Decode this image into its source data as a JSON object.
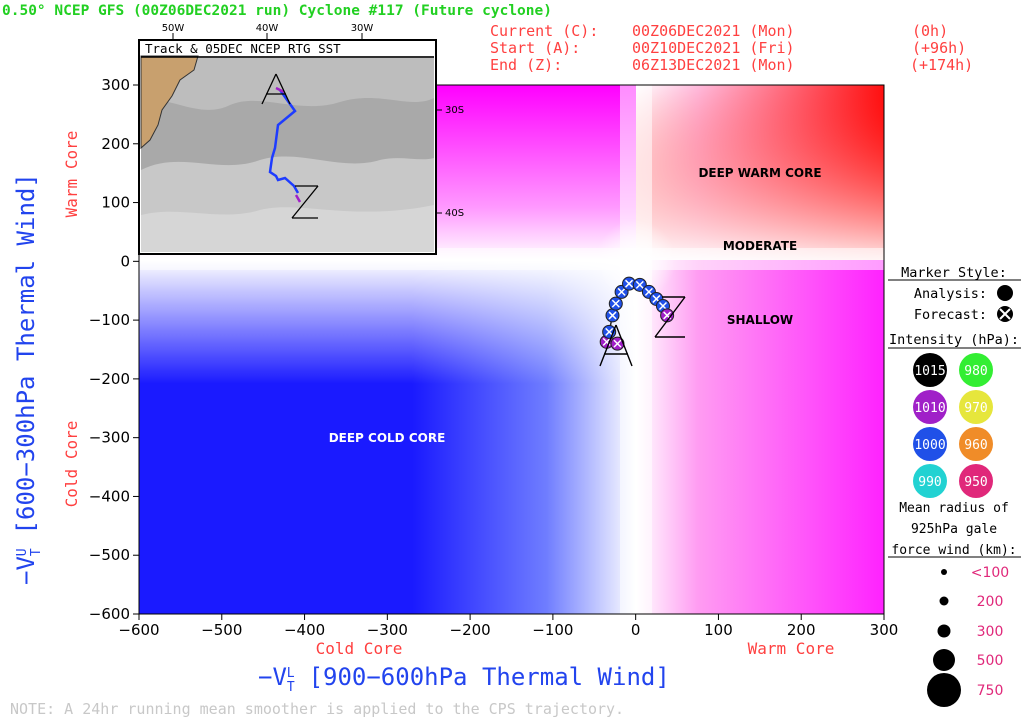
{
  "header": {
    "title": "0.50° NCEP GFS (00Z06DEC2021 run) Cyclone #117 (Future cyclone)",
    "current_label": "Current (C):",
    "current_date": "00Z06DEC2021 (Mon)",
    "current_offset": "(0h)",
    "start_label": "Start (A):",
    "start_date": "00Z10DEC2021 (Fri)",
    "start_offset": "(+96h)",
    "end_label": "End (Z):",
    "end_date": "06Z13DEC2021 (Mon)",
    "end_offset": "(+174h)"
  },
  "inset": {
    "title": "Track & 05DEC NCEP RTG SST",
    "lon_labels": [
      "50W",
      "40W",
      "30W"
    ],
    "lat_labels": [
      "30S",
      "40S"
    ],
    "start_marker": "A",
    "end_marker": "Z"
  },
  "regions": {
    "deep_warm_core": "DEEP WARM CORE",
    "moderate": "MODERATE",
    "shallow": "SHALLOW",
    "deep_cold_core": "DEEP COLD CORE"
  },
  "axis_text": {
    "y_warm": "Warm Core",
    "y_cold": "Cold Core",
    "x_cold": "Cold Core",
    "x_warm": "Warm Core",
    "x_title": "−V",
    "x_title_sub": "T",
    "x_title_sup": "L",
    "x_title_rest": "[900−600hPa Thermal Wind]",
    "y_title": "−V",
    "y_title_sub": "T",
    "y_title_sup": "U",
    "y_title_rest": "[600−300hPa Thermal Wind]"
  },
  "legend": {
    "marker_title": "Marker Style:",
    "analysis_label": "Analysis:",
    "forecast_label": "Forecast:",
    "intensity_title": "Intensity (hPa):",
    "intensity": [
      {
        "label": "1015",
        "color": "#000000"
      },
      {
        "label": "980",
        "color": "#33ee33"
      },
      {
        "label": "1010",
        "color": "#a020c8"
      },
      {
        "label": "970",
        "color": "#e6e63c"
      },
      {
        "label": "1000",
        "color": "#2050e8"
      },
      {
        "label": "960",
        "color": "#f08c28"
      },
      {
        "label": "990",
        "color": "#22d2d2"
      },
      {
        "label": "950",
        "color": "#e0287a"
      }
    ],
    "radius_title_1": "Mean radius of",
    "radius_title_2": "925hPa gale",
    "radius_title_3": "force wind (km):",
    "radius": [
      "<100",
      "200",
      "300",
      "500",
      "750"
    ]
  },
  "note": "NOTE: A 24hr running mean smoother is applied to the CPS trajectory.",
  "chart_data": {
    "type": "scatter",
    "title": "",
    "xlabel": "−VTL [900−600hPa Thermal Wind]",
    "ylabel": "−VTU [600−300hPa Thermal Wind]",
    "xlim": [
      -600,
      300
    ],
    "ylim": [
      -600,
      300
    ],
    "xticks": [
      -600,
      -500,
      -400,
      -300,
      -200,
      -100,
      0,
      100,
      200,
      300
    ],
    "yticks": [
      -600,
      -500,
      -400,
      -300,
      -200,
      -100,
      0,
      100,
      200,
      300
    ],
    "grid": false,
    "start_marker": "A",
    "end_marker": "Z",
    "series": [
      {
        "x": [
          -35,
          -32,
          -28,
          -24,
          -17,
          -8,
          5,
          16,
          25,
          33,
          38
        ],
        "y": [
          -137,
          -120,
          -92,
          -72,
          -52,
          -38,
          -40,
          -52,
          -64,
          -76,
          -92
        ],
        "intensity": [
          1010,
          1000,
          1000,
          1000,
          1000,
          1000,
          1000,
          1000,
          1000,
          1000,
          1010
        ],
        "analysis": [
          false,
          false,
          false,
          false,
          false,
          false,
          false,
          false,
          false,
          false,
          false
        ]
      }
    ],
    "extra_point": {
      "x": -22,
      "y": -140,
      "intensity": 1010
    }
  }
}
